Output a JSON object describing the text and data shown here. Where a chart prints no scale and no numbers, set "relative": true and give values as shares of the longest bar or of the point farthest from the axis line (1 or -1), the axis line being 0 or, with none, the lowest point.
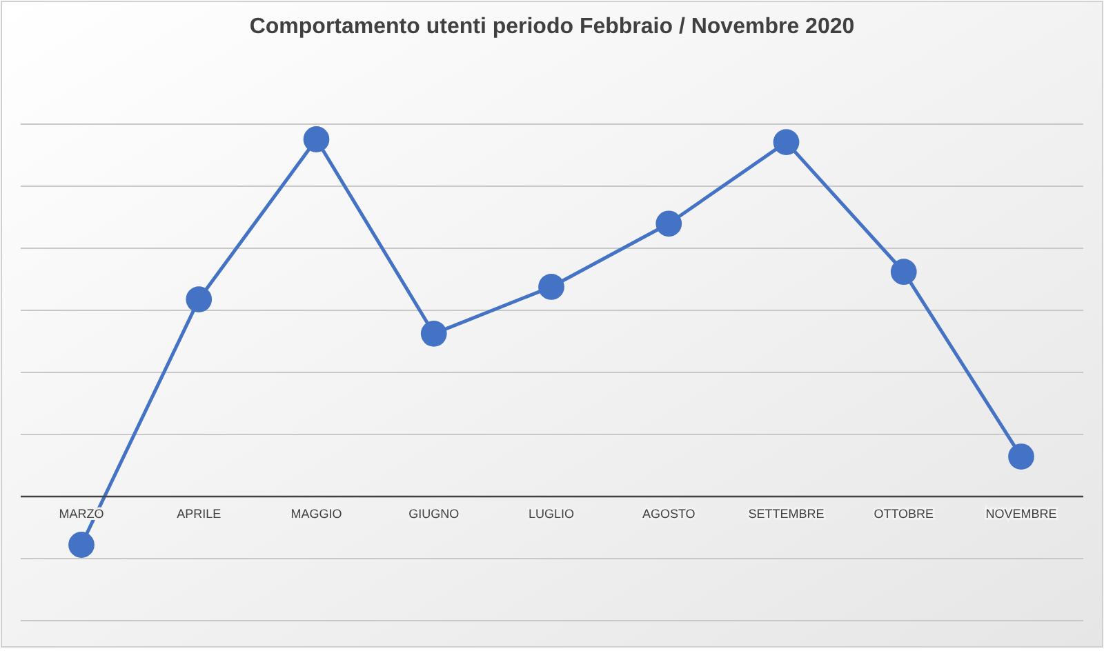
{
  "chart_data": {
    "type": "line",
    "title": "Comportamento utenti periodo Febbraio / Novembre 2020",
    "categories": [
      "MARZO",
      "APRILE",
      "MAGGIO",
      "GIUGNO",
      "LUGLIO",
      "AGOSTO",
      "SETTEMBRE",
      "OTTOBRE",
      "NOVEMBRE"
    ],
    "series": [
      {
        "color": "#4472c4",
        "values": [
          -0.135,
          0.552,
          1,
          0.456,
          0.587,
          0.764,
          0.992,
          0.629,
          0.112
        ]
      }
    ],
    "relative": true,
    "grid": "y",
    "marker": "circle",
    "line_style": "solid"
  }
}
